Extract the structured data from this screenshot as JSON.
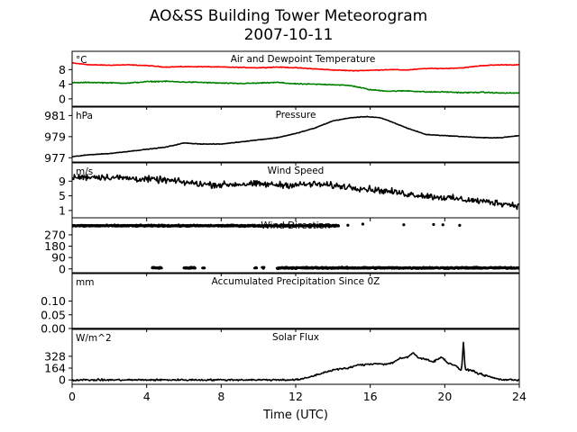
{
  "title_lines": [
    "AO&SS Building Tower Meteorogram",
    "2007-10-11"
  ],
  "xlabel": "Time (UTC)",
  "x_ticks": [
    0,
    4,
    8,
    12,
    16,
    20,
    24
  ],
  "x_tick_labels": [
    "0",
    "4",
    "8",
    "12",
    "16",
    "20",
    "24"
  ],
  "xlim": [
    0,
    24
  ],
  "colors": {
    "temperature": "#ff0000",
    "dewpoint": "#008000",
    "default": "#000000"
  },
  "chart_data": [
    {
      "type": "line",
      "title": "Air and Dewpoint Temperature",
      "unit": "°C",
      "ylim": [
        -2,
        13
      ],
      "y_ticks": [
        0,
        4,
        8
      ],
      "y_tick_labels": [
        "0",
        "4",
        "8"
      ],
      "series": [
        {
          "color": "#ff0000",
          "x": [
            0,
            1,
            2,
            3,
            4,
            5,
            6,
            7,
            8,
            9,
            10,
            11,
            12,
            13,
            14,
            15,
            16,
            17,
            18,
            19,
            20,
            21,
            22,
            23,
            24
          ],
          "y": [
            9.8,
            9.3,
            9.2,
            9.3,
            9.1,
            8.7,
            8.8,
            8.8,
            8.7,
            8.6,
            8.5,
            8.7,
            8.5,
            8.2,
            7.9,
            7.7,
            7.8,
            8.0,
            7.9,
            8.3,
            8.3,
            8.5,
            9.1,
            9.3,
            9.3
          ],
          "noise": 0.15
        },
        {
          "color": "#008000",
          "x": [
            0,
            1,
            2,
            3,
            4,
            5,
            6,
            7,
            8,
            9,
            10,
            11,
            12,
            13,
            14,
            15,
            16,
            17,
            18,
            19,
            20,
            21,
            22,
            23,
            24
          ],
          "y": [
            4.4,
            4.5,
            4.4,
            4.3,
            4.7,
            4.8,
            4.6,
            4.5,
            4.3,
            4.2,
            4.3,
            4.5,
            4.1,
            4.0,
            3.9,
            3.6,
            2.5,
            2.1,
            2.2,
            1.9,
            1.9,
            1.7,
            1.8,
            1.6,
            1.6
          ],
          "noise": 0.2
        }
      ]
    },
    {
      "type": "line",
      "title": "Pressure",
      "unit": "hPa",
      "ylim": [
        976.6,
        981.8
      ],
      "y_ticks": [
        977,
        979,
        981
      ],
      "y_tick_labels": [
        "977",
        "979",
        "981"
      ],
      "series": [
        {
          "color": "#000000",
          "x": [
            0,
            1,
            2,
            3,
            4,
            5,
            6,
            7,
            8,
            9,
            10,
            11,
            12,
            13,
            14,
            15,
            15.8,
            16.5,
            17,
            18,
            19,
            20,
            21,
            22,
            23,
            24
          ],
          "y": [
            977.1,
            977.3,
            977.4,
            977.6,
            977.8,
            978.0,
            978.4,
            978.3,
            978.3,
            978.5,
            978.7,
            978.9,
            979.3,
            979.8,
            980.5,
            980.8,
            980.9,
            980.8,
            980.5,
            979.8,
            979.2,
            979.1,
            979.0,
            978.9,
            978.9,
            979.1
          ],
          "noise": 0.04
        }
      ]
    },
    {
      "type": "line",
      "title": "Wind Speed",
      "unit": "m/s",
      "ylim": [
        -1,
        14
      ],
      "y_ticks": [
        1,
        5,
        9
      ],
      "y_tick_labels": [
        "1",
        "5",
        "9"
      ],
      "series": [
        {
          "color": "#000000",
          "x": [
            0,
            1,
            2,
            3,
            4,
            5,
            6,
            7,
            8,
            9,
            10,
            11,
            12,
            13,
            14,
            15,
            16,
            17,
            18,
            19,
            20,
            21,
            22,
            23,
            24
          ],
          "y": [
            10.0,
            10.2,
            10.1,
            9.8,
            9.5,
            9.3,
            8.7,
            8.2,
            8.0,
            8.2,
            8.2,
            8.0,
            8.0,
            8.2,
            7.8,
            7.4,
            6.8,
            6.2,
            5.5,
            5.0,
            4.5,
            4.0,
            3.5,
            3.0,
            2.3
          ],
          "noise": 1.3
        }
      ]
    },
    {
      "type": "scatter",
      "title": "Wind Direction",
      "unit": "",
      "ylim": [
        -30,
        405
      ],
      "y_ticks": [
        0,
        90,
        180,
        270
      ],
      "y_tick_labels": [
        "0",
        "90",
        "180",
        "270"
      ],
      "series": [
        {
          "color": "#000000",
          "x_ranges": [
            [
              0,
              14.3
            ]
          ],
          "y": 342,
          "noise": 8
        },
        {
          "color": "#000000",
          "x_ranges": [
            [
              4.3,
              4.8
            ],
            [
              6.0,
              6.6
            ],
            [
              7.0,
              7.1
            ],
            [
              9.8,
              9.9
            ],
            [
              10.2,
              10.3
            ],
            [
              11.0,
              24.0
            ]
          ],
          "y": 8,
          "noise": 8
        },
        {
          "color": "#000000",
          "points": [
            [
              15.6,
              355
            ],
            [
              17.8,
              350
            ],
            [
              19.4,
              352
            ],
            [
              19.9,
              350
            ],
            [
              20.8,
              345
            ],
            [
              14.8,
              346
            ],
            [
              13.8,
              348
            ],
            [
              13.3,
              350
            ]
          ]
        }
      ]
    },
    {
      "type": "line",
      "title": "Accumulated Precipitation Since 0Z",
      "unit": "mm",
      "ylim": [
        0,
        0.2
      ],
      "y_ticks": [
        0.0,
        0.05,
        0.1
      ],
      "y_tick_labels": [
        "0.00",
        "0.05",
        "0.10"
      ],
      "series": [
        {
          "color": "#000000",
          "x": [
            0,
            24
          ],
          "y": [
            0,
            0
          ],
          "noise": 0
        }
      ]
    },
    {
      "type": "line",
      "title": "Solar Flux",
      "unit": "W/m^2",
      "ylim": [
        -60,
        700
      ],
      "y_ticks": [
        0,
        164,
        328
      ],
      "y_tick_labels": [
        "0",
        "164",
        "328"
      ],
      "series": [
        {
          "color": "#000000",
          "x": [
            0,
            12.0,
            12.4,
            13.0,
            13.6,
            14.2,
            14.8,
            15.2,
            15.6,
            16.0,
            16.4,
            16.8,
            17.2,
            17.6,
            18.0,
            18.3,
            18.6,
            19.0,
            19.4,
            19.8,
            20.2,
            20.6,
            20.9,
            21.0,
            21.1,
            21.4,
            21.8,
            22.2,
            22.6,
            23.0,
            24.0
          ],
          "y": [
            0,
            2,
            15,
            60,
            110,
            150,
            160,
            200,
            210,
            220,
            230,
            215,
            240,
            300,
            310,
            380,
            300,
            290,
            250,
            320,
            230,
            200,
            120,
            520,
            140,
            140,
            90,
            60,
            30,
            5,
            0
          ],
          "noise": 18
        }
      ]
    }
  ]
}
